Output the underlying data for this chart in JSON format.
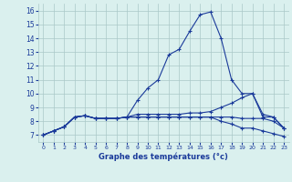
{
  "xlabel": "Graphe des températures (°c)",
  "x": [
    0,
    1,
    2,
    3,
    4,
    5,
    6,
    7,
    8,
    9,
    10,
    11,
    12,
    13,
    14,
    15,
    16,
    17,
    18,
    19,
    20,
    21,
    22,
    23
  ],
  "line1": [
    7.0,
    7.3,
    7.6,
    8.3,
    8.4,
    8.2,
    8.2,
    8.2,
    8.3,
    9.5,
    10.4,
    11.0,
    12.8,
    13.2,
    14.5,
    15.7,
    15.9,
    14.0,
    11.0,
    10.0,
    10.0,
    8.3,
    8.3,
    7.5
  ],
  "line2": [
    7.0,
    7.3,
    7.6,
    8.3,
    8.4,
    8.2,
    8.2,
    8.2,
    8.3,
    8.5,
    8.5,
    8.5,
    8.5,
    8.5,
    8.6,
    8.6,
    8.7,
    9.0,
    9.3,
    9.7,
    10.0,
    8.5,
    8.3,
    7.5
  ],
  "line3": [
    7.0,
    7.3,
    7.6,
    8.3,
    8.4,
    8.2,
    8.2,
    8.2,
    8.3,
    8.3,
    8.3,
    8.3,
    8.3,
    8.3,
    8.3,
    8.3,
    8.3,
    8.3,
    8.3,
    8.2,
    8.2,
    8.2,
    8.0,
    7.5
  ],
  "line4": [
    7.0,
    7.3,
    7.6,
    8.3,
    8.4,
    8.2,
    8.2,
    8.2,
    8.3,
    8.3,
    8.3,
    8.3,
    8.3,
    8.3,
    8.3,
    8.3,
    8.3,
    8.0,
    7.8,
    7.5,
    7.5,
    7.3,
    7.1,
    6.9
  ],
  "line_color": "#1a3a9a",
  "bg_color": "#daf0ee",
  "grid_color": "#aac8c8",
  "ylim": [
    6.5,
    16.5
  ],
  "xlim": [
    -0.5,
    23.5
  ],
  "yticks": [
    7,
    8,
    9,
    10,
    11,
    12,
    13,
    14,
    15,
    16
  ],
  "xticks": [
    0,
    1,
    2,
    3,
    4,
    5,
    6,
    7,
    8,
    9,
    10,
    11,
    12,
    13,
    14,
    15,
    16,
    17,
    18,
    19,
    20,
    21,
    22,
    23
  ]
}
